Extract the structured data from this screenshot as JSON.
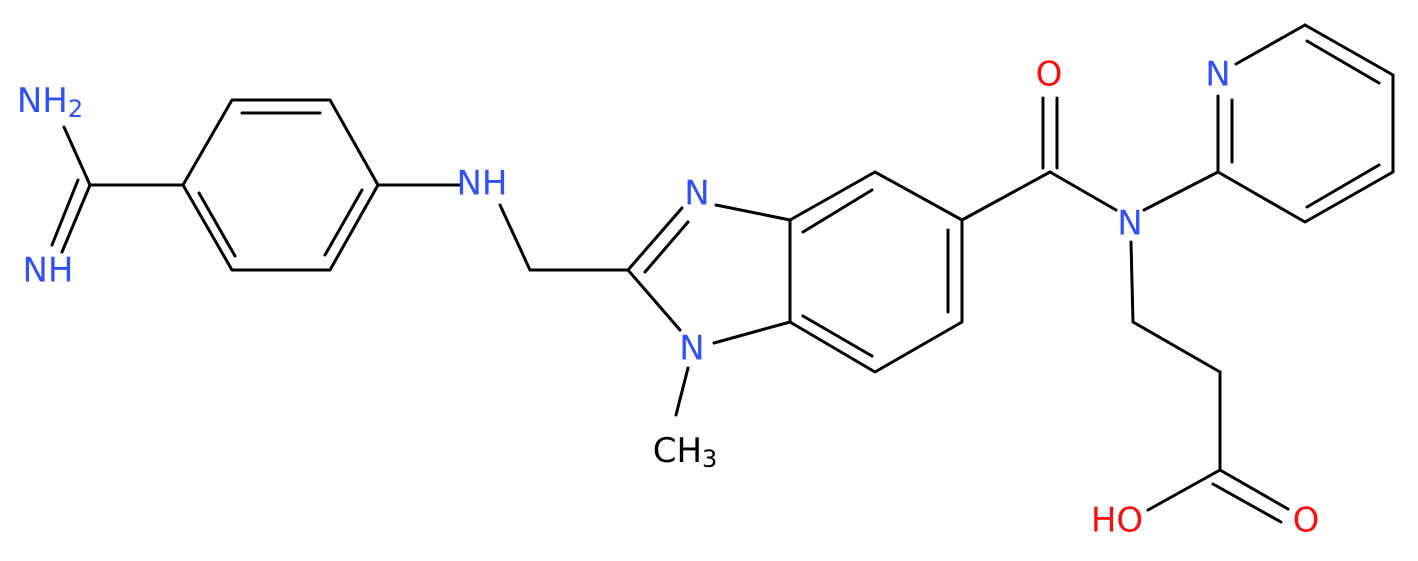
{
  "atoms": [
    {
      "text": "NH",
      "sub": "2"
    },
    {
      "text": "NH"
    },
    {
      "text": "NH"
    },
    {
      "text": "N"
    },
    {
      "text": "N"
    },
    {
      "text": "CH",
      "sub": "3"
    },
    {
      "text": "O"
    },
    {
      "text": "N"
    },
    {
      "text": "N"
    },
    {
      "text": "HO"
    },
    {
      "text": "O"
    }
  ]
}
